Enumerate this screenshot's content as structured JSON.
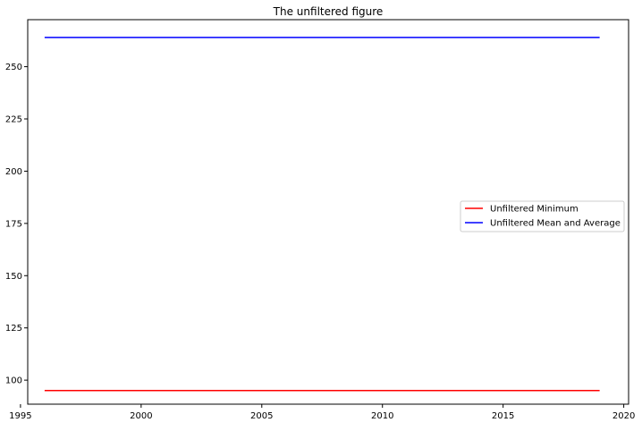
{
  "chart_data": {
    "type": "line",
    "title": "The unfiltered figure",
    "xlabel": "",
    "ylabel": "",
    "xlim": [
      1995.3,
      2020.2
    ],
    "ylim": [
      88.5,
      272.5
    ],
    "xticks": [
      1995,
      2000,
      2005,
      2010,
      2015,
      2020
    ],
    "yticks": [
      100,
      125,
      150,
      175,
      200,
      225,
      250
    ],
    "grid": false,
    "legend_position": "center-right",
    "series": [
      {
        "name": "Unfiltered Minimum",
        "color": "#ff0000",
        "x": [
          1996,
          2019
        ],
        "y": [
          95,
          95
        ]
      },
      {
        "name": "Unfiltered Mean and Average",
        "color": "#0000ff",
        "x": [
          1996,
          2019
        ],
        "y": [
          264,
          264
        ]
      }
    ]
  }
}
